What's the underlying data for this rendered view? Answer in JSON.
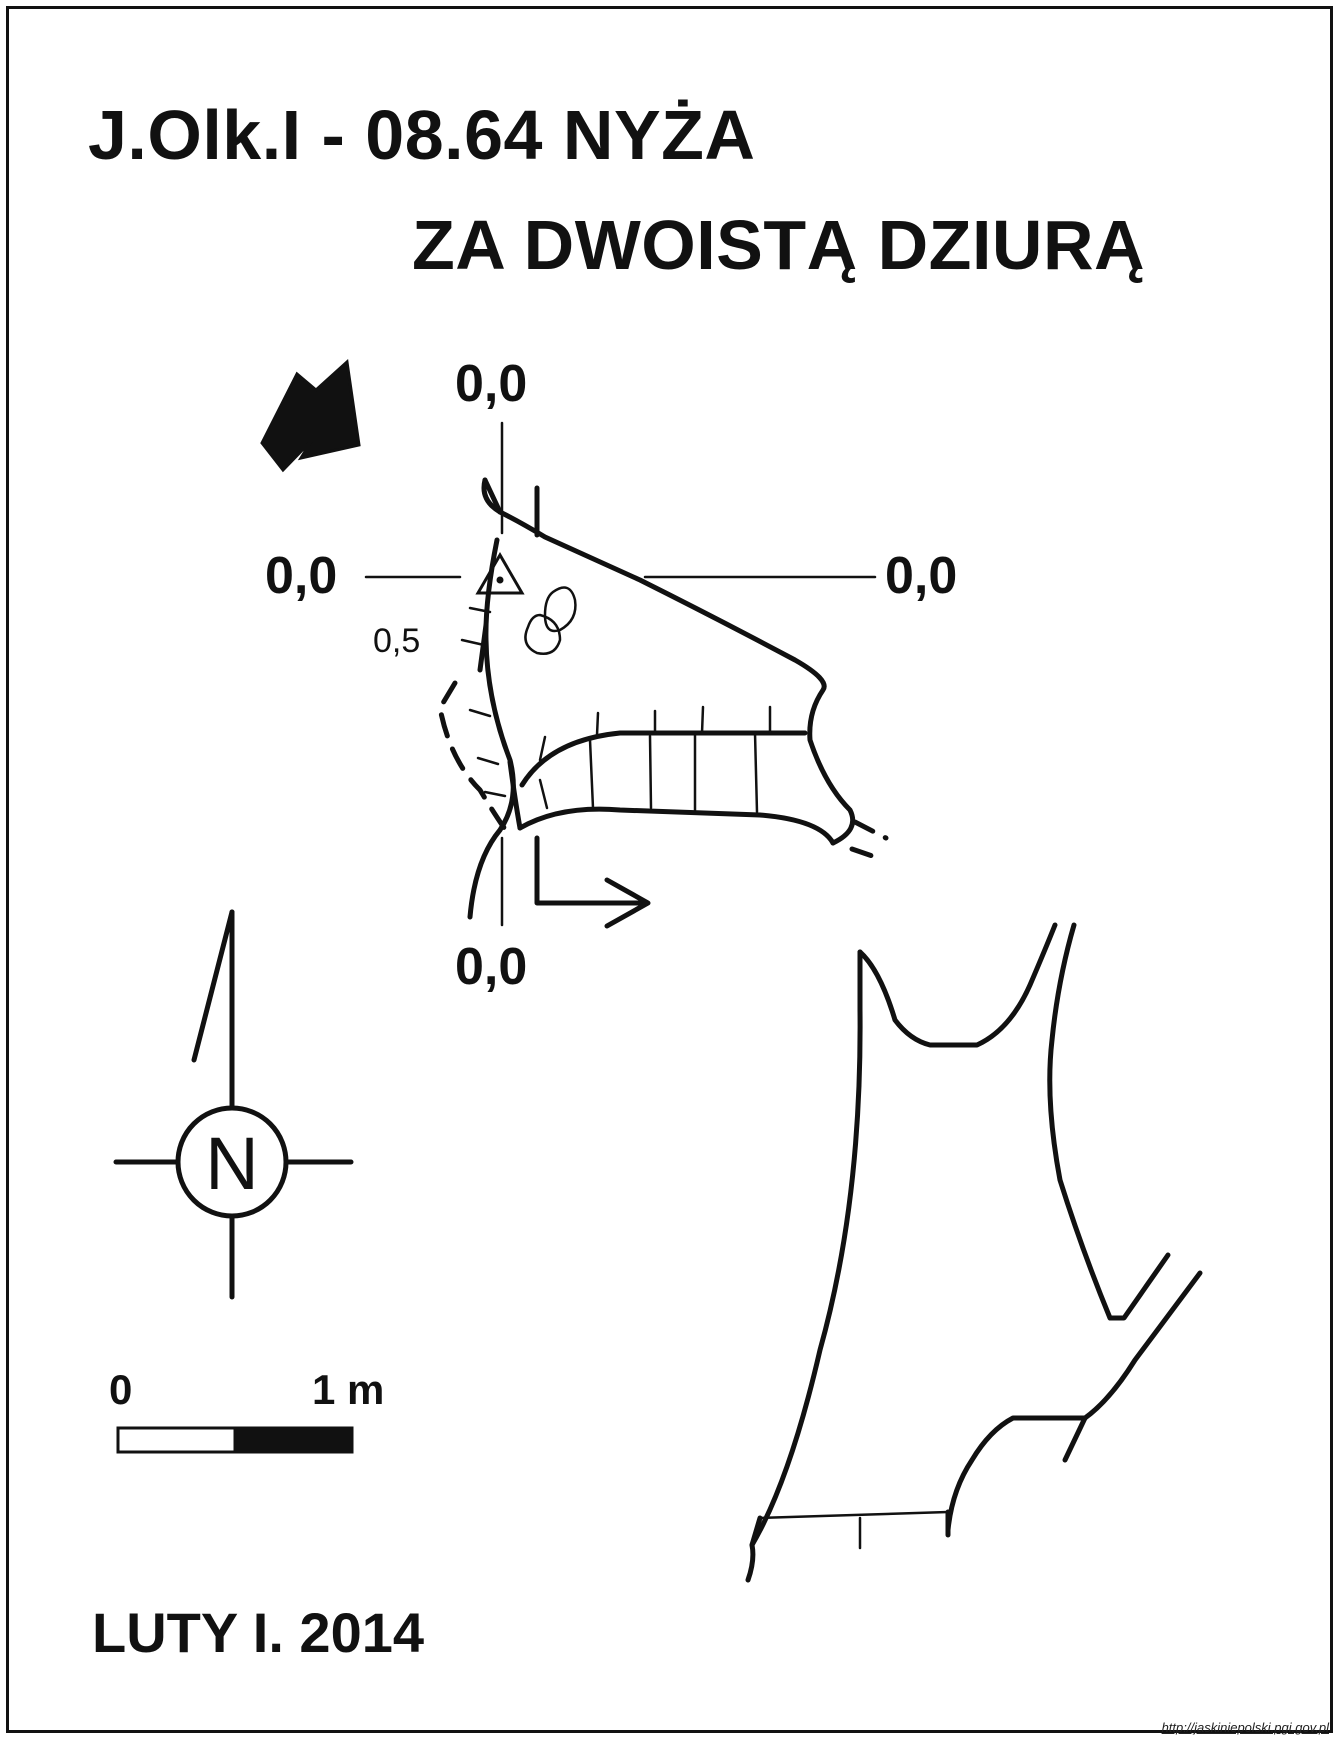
{
  "title": {
    "line1": "J.Olk.I - 08.64  NYŻA",
    "line2": "ZA DWOISTĄ DZIURĄ"
  },
  "profile_labels": {
    "top": "0,0",
    "left": "0,0",
    "right": "0,0",
    "bottom": "0,0",
    "depth": "0,5"
  },
  "compass": {
    "letter": "N"
  },
  "scale": {
    "start": "0",
    "end": "1 m"
  },
  "footer": {
    "date": "LUTY I. 2014"
  },
  "source": "http://jaskiniepolski.pgi.gov.pl"
}
